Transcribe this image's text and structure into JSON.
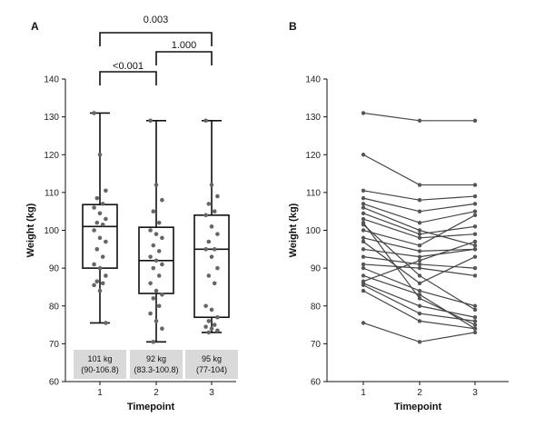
{
  "chart_data": [
    {
      "panel": "A",
      "type": "box",
      "xlabel": "Timepoint",
      "ylabel": "Weight (kg)",
      "ylim": [
        60,
        140
      ],
      "yticks": [
        60,
        70,
        80,
        90,
        100,
        110,
        120,
        130,
        140
      ],
      "categories": [
        "1",
        "2",
        "3"
      ],
      "boxes": [
        {
          "min": 75.5,
          "q1": 90,
          "median": 101,
          "q3": 106.8,
          "max": 131,
          "points": [
            131,
            120,
            110.5,
            108.5,
            107,
            106,
            104.5,
            103,
            102,
            101.5,
            100,
            98,
            97,
            95,
            93,
            91,
            90,
            88,
            86.5,
            86,
            85.5,
            84,
            75.5
          ]
        },
        {
          "min": 70.5,
          "q1": 83.3,
          "median": 92,
          "q3": 100.8,
          "max": 129,
          "points": [
            129,
            112,
            108,
            105,
            102,
            100,
            99,
            98,
            96,
            94.5,
            93,
            92,
            91,
            90,
            88,
            86,
            84,
            83,
            82,
            80,
            78,
            76,
            74,
            70.5
          ]
        },
        {
          "min": 73,
          "q1": 77,
          "median": 95,
          "q3": 104,
          "max": 129,
          "points": [
            129,
            112,
            109,
            107,
            105,
            104,
            101,
            99,
            97,
            95,
            95,
            93,
            90,
            88,
            86,
            80,
            79,
            77,
            76,
            75,
            74.5,
            74,
            73.5,
            73
          ]
        }
      ],
      "summary_labels": [
        {
          "line1": "101 kg",
          "line2": "(90-106.8)"
        },
        {
          "line1": "92 kg",
          "line2": "(83.3-100.8)"
        },
        {
          "line1": "95 kg",
          "line2": "(77-104)"
        }
      ],
      "comparisons": [
        {
          "from": "1",
          "to": "3",
          "label": "0.003"
        },
        {
          "from": "2",
          "to": "3",
          "label": "1.000"
        },
        {
          "from": "1",
          "to": "2",
          "label": "<0.001"
        }
      ]
    },
    {
      "panel": "B",
      "type": "line",
      "xlabel": "Timepoint",
      "ylabel": "Weight (kg)",
      "ylim": [
        60,
        140
      ],
      "yticks": [
        60,
        70,
        80,
        90,
        100,
        110,
        120,
        130,
        140
      ],
      "x": [
        "1",
        "2",
        "3"
      ],
      "series": [
        {
          "values": [
            131,
            129,
            129
          ]
        },
        {
          "values": [
            120,
            112,
            112
          ]
        },
        {
          "values": [
            110.5,
            108,
            109
          ]
        },
        {
          "values": [
            108.5,
            105,
            107
          ]
        },
        {
          "values": [
            107,
            102,
            105
          ]
        },
        {
          "values": [
            106,
            100,
            96
          ]
        },
        {
          "values": [
            104.5,
            99,
            101
          ]
        },
        {
          "values": [
            103,
            98,
            99
          ]
        },
        {
          "values": [
            102,
            82,
            75
          ]
        },
        {
          "values": [
            101.5,
            88,
            79
          ]
        },
        {
          "values": [
            100,
            96,
            104
          ]
        },
        {
          "values": [
            98,
            94.5,
            95
          ]
        },
        {
          "values": [
            97,
            86,
            93
          ]
        },
        {
          "values": [
            95,
            93,
            95
          ]
        },
        {
          "values": [
            93,
            91,
            90
          ]
        },
        {
          "values": [
            91,
            90,
            88
          ]
        },
        {
          "values": [
            90,
            84,
            80
          ]
        },
        {
          "values": [
            88,
            83,
            74
          ]
        },
        {
          "values": [
            86.5,
            92,
            97
          ]
        },
        {
          "values": [
            86,
            80,
            77
          ]
        },
        {
          "values": [
            85.5,
            78,
            76
          ]
        },
        {
          "values": [
            84,
            76,
            74
          ]
        },
        {
          "values": [
            75.5,
            70.5,
            73
          ]
        }
      ]
    }
  ]
}
